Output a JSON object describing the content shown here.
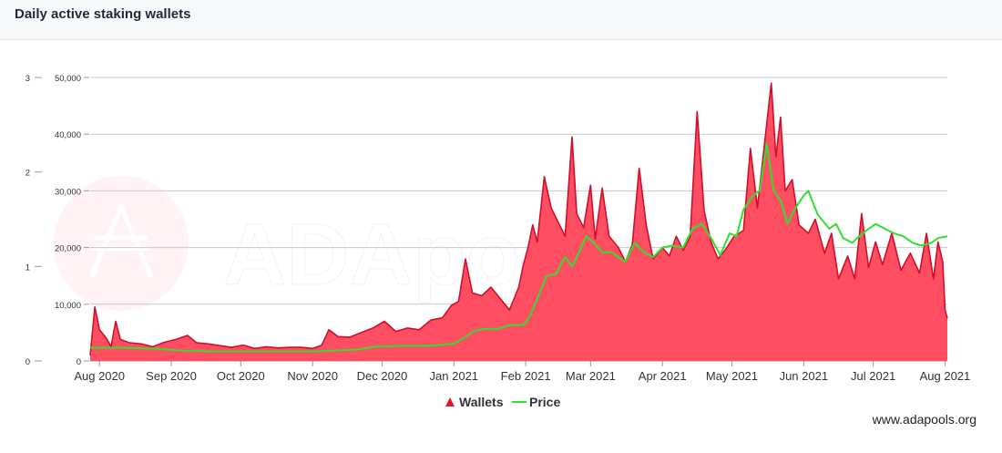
{
  "header": {
    "title": "Daily active staking wallets"
  },
  "footer": {
    "site": "www.adapools.org"
  },
  "watermark": {
    "text": "ADApools.org"
  },
  "colors": {
    "wallets_fill": "#ff4d62",
    "wallets_line": "#d10f2a",
    "price_line": "#2fe02f",
    "grid": "#c9c9c9",
    "axis_text": "#333333"
  },
  "chart_data": {
    "type": "area",
    "title": "Daily active staking wallets",
    "x_ticks": [
      "Aug 2020",
      "Sep 2020",
      "Oct 2020",
      "Nov 2020",
      "Dec 2020",
      "Jan 2021",
      "Feb 2021",
      "Mar 2021",
      "Apr 2021",
      "May 2021",
      "Jun 2021",
      "Jul 2021",
      "Aug 2021"
    ],
    "x_range": [
      "2020-07-28",
      "2021-08-02"
    ],
    "y_left": {
      "ticks": [
        "0",
        "1",
        "2",
        "3"
      ],
      "range": [
        0,
        3
      ]
    },
    "y_right": {
      "ticks": [
        "0",
        "10,000",
        "20,000",
        "30,000",
        "40,000",
        "50,000"
      ],
      "range": [
        0,
        50000
      ]
    },
    "grid": true,
    "legend": {
      "placement": "bottom-center"
    },
    "series": [
      {
        "name": "Wallets",
        "kind": "area",
        "axis": "right",
        "points": [
          [
            "2020-07-28",
            1000
          ],
          [
            "2020-07-30",
            9500
          ],
          [
            "2020-08-01",
            5500
          ],
          [
            "2020-08-04",
            4000
          ],
          [
            "2020-08-06",
            2500
          ],
          [
            "2020-08-08",
            7000
          ],
          [
            "2020-08-10",
            3800
          ],
          [
            "2020-08-14",
            3200
          ],
          [
            "2020-08-19",
            3000
          ],
          [
            "2020-08-24",
            2500
          ],
          [
            "2020-08-29",
            3300
          ],
          [
            "2020-09-03",
            3800
          ],
          [
            "2020-09-08",
            4500
          ],
          [
            "2020-09-12",
            3200
          ],
          [
            "2020-09-17",
            3000
          ],
          [
            "2020-09-22",
            2700
          ],
          [
            "2020-09-27",
            2400
          ],
          [
            "2020-10-02",
            2800
          ],
          [
            "2020-10-07",
            2200
          ],
          [
            "2020-10-12",
            2500
          ],
          [
            "2020-10-17",
            2300
          ],
          [
            "2020-10-22",
            2400
          ],
          [
            "2020-10-27",
            2400
          ],
          [
            "2020-11-01",
            2200
          ],
          [
            "2020-11-05",
            2800
          ],
          [
            "2020-11-08",
            5500
          ],
          [
            "2020-11-12",
            4300
          ],
          [
            "2020-11-17",
            4200
          ],
          [
            "2020-11-22",
            5000
          ],
          [
            "2020-11-27",
            5800
          ],
          [
            "2020-12-02",
            7000
          ],
          [
            "2020-12-07",
            5200
          ],
          [
            "2020-12-12",
            5800
          ],
          [
            "2020-12-17",
            5500
          ],
          [
            "2020-12-22",
            7200
          ],
          [
            "2020-12-27",
            7600
          ],
          [
            "2020-12-31",
            9800
          ],
          [
            "2021-01-03",
            10500
          ],
          [
            "2021-01-06",
            18000
          ],
          [
            "2021-01-09",
            12000
          ],
          [
            "2021-01-13",
            11500
          ],
          [
            "2021-01-17",
            13000
          ],
          [
            "2021-01-21",
            11000
          ],
          [
            "2021-01-25",
            9000
          ],
          [
            "2021-01-29",
            13000
          ],
          [
            "2021-01-31",
            17000
          ],
          [
            "2021-02-02",
            20000
          ],
          [
            "2021-02-04",
            24000
          ],
          [
            "2021-02-06",
            21000
          ],
          [
            "2021-02-09",
            32500
          ],
          [
            "2021-02-12",
            27000
          ],
          [
            "2021-02-15",
            24500
          ],
          [
            "2021-02-18",
            22000
          ],
          [
            "2021-02-21",
            39500
          ],
          [
            "2021-02-23",
            26000
          ],
          [
            "2021-02-26",
            23500
          ],
          [
            "2021-03-01",
            31000
          ],
          [
            "2021-03-03",
            21500
          ],
          [
            "2021-03-06",
            30500
          ],
          [
            "2021-03-09",
            22000
          ],
          [
            "2021-03-13",
            20000
          ],
          [
            "2021-03-16",
            17500
          ],
          [
            "2021-03-19",
            20500
          ],
          [
            "2021-03-22",
            34000
          ],
          [
            "2021-03-25",
            24000
          ],
          [
            "2021-03-28",
            18000
          ],
          [
            "2021-04-01",
            20000
          ],
          [
            "2021-04-04",
            18500
          ],
          [
            "2021-04-07",
            22000
          ],
          [
            "2021-04-10",
            19500
          ],
          [
            "2021-04-13",
            22000
          ],
          [
            "2021-04-16",
            44000
          ],
          [
            "2021-04-19",
            26500
          ],
          [
            "2021-04-22",
            21000
          ],
          [
            "2021-04-25",
            18000
          ],
          [
            "2021-04-28",
            19500
          ],
          [
            "2021-05-02",
            22000
          ],
          [
            "2021-05-06",
            23000
          ],
          [
            "2021-05-09",
            37500
          ],
          [
            "2021-05-12",
            27000
          ],
          [
            "2021-05-15",
            38000
          ],
          [
            "2021-05-18",
            49000
          ],
          [
            "2021-05-20",
            36000
          ],
          [
            "2021-05-22",
            43000
          ],
          [
            "2021-05-24",
            30000
          ],
          [
            "2021-05-27",
            32000
          ],
          [
            "2021-05-30",
            24000
          ],
          [
            "2021-06-03",
            22500
          ],
          [
            "2021-06-06",
            25000
          ],
          [
            "2021-06-10",
            19000
          ],
          [
            "2021-06-13",
            22500
          ],
          [
            "2021-06-16",
            14500
          ],
          [
            "2021-06-20",
            18500
          ],
          [
            "2021-06-23",
            14500
          ],
          [
            "2021-06-26",
            26000
          ],
          [
            "2021-06-29",
            16500
          ],
          [
            "2021-07-02",
            21000
          ],
          [
            "2021-07-05",
            17000
          ],
          [
            "2021-07-09",
            22500
          ],
          [
            "2021-07-13",
            16000
          ],
          [
            "2021-07-17",
            19000
          ],
          [
            "2021-07-21",
            15500
          ],
          [
            "2021-07-24",
            22500
          ],
          [
            "2021-07-27",
            14500
          ],
          [
            "2021-07-29",
            21000
          ],
          [
            "2021-07-31",
            17500
          ],
          [
            "2021-08-01",
            9000
          ],
          [
            "2021-08-02",
            7500
          ]
        ]
      },
      {
        "name": "Price",
        "kind": "line",
        "axis": "left",
        "points": [
          [
            "2020-07-28",
            0.14
          ],
          [
            "2020-08-10",
            0.14
          ],
          [
            "2020-08-25",
            0.13
          ],
          [
            "2020-09-05",
            0.11
          ],
          [
            "2020-09-20",
            0.1
          ],
          [
            "2020-10-05",
            0.1
          ],
          [
            "2020-10-20",
            0.1
          ],
          [
            "2020-11-01",
            0.1
          ],
          [
            "2020-11-10",
            0.11
          ],
          [
            "2020-11-20",
            0.12
          ],
          [
            "2020-11-28",
            0.15
          ],
          [
            "2020-12-10",
            0.16
          ],
          [
            "2020-12-20",
            0.16
          ],
          [
            "2021-01-01",
            0.18
          ],
          [
            "2021-01-05",
            0.24
          ],
          [
            "2021-01-10",
            0.32
          ],
          [
            "2021-01-15",
            0.34
          ],
          [
            "2021-01-20",
            0.34
          ],
          [
            "2021-01-25",
            0.38
          ],
          [
            "2021-01-31",
            0.38
          ],
          [
            "2021-02-03",
            0.48
          ],
          [
            "2021-02-06",
            0.66
          ],
          [
            "2021-02-10",
            0.9
          ],
          [
            "2021-02-14",
            0.92
          ],
          [
            "2021-02-18",
            1.1
          ],
          [
            "2021-02-21",
            1.0
          ],
          [
            "2021-02-25",
            1.2
          ],
          [
            "2021-02-27",
            1.32
          ],
          [
            "2021-03-02",
            1.26
          ],
          [
            "2021-03-06",
            1.15
          ],
          [
            "2021-03-10",
            1.15
          ],
          [
            "2021-03-13",
            1.1
          ],
          [
            "2021-03-16",
            1.05
          ],
          [
            "2021-03-20",
            1.25
          ],
          [
            "2021-03-24",
            1.15
          ],
          [
            "2021-03-28",
            1.1
          ],
          [
            "2021-04-01",
            1.2
          ],
          [
            "2021-04-05",
            1.22
          ],
          [
            "2021-04-10",
            1.2
          ],
          [
            "2021-04-14",
            1.4
          ],
          [
            "2021-04-18",
            1.45
          ],
          [
            "2021-04-22",
            1.3
          ],
          [
            "2021-04-26",
            1.12
          ],
          [
            "2021-04-30",
            1.35
          ],
          [
            "2021-05-03",
            1.32
          ],
          [
            "2021-05-06",
            1.6
          ],
          [
            "2021-05-10",
            1.75
          ],
          [
            "2021-05-13",
            1.8
          ],
          [
            "2021-05-16",
            2.3
          ],
          [
            "2021-05-19",
            1.8
          ],
          [
            "2021-05-22",
            1.7
          ],
          [
            "2021-05-25",
            1.45
          ],
          [
            "2021-05-28",
            1.6
          ],
          [
            "2021-06-01",
            1.75
          ],
          [
            "2021-06-03",
            1.8
          ],
          [
            "2021-06-07",
            1.55
          ],
          [
            "2021-06-12",
            1.4
          ],
          [
            "2021-06-15",
            1.45
          ],
          [
            "2021-06-18",
            1.3
          ],
          [
            "2021-06-22",
            1.25
          ],
          [
            "2021-06-25",
            1.32
          ],
          [
            "2021-06-28",
            1.38
          ],
          [
            "2021-07-02",
            1.45
          ],
          [
            "2021-07-06",
            1.4
          ],
          [
            "2021-07-10",
            1.35
          ],
          [
            "2021-07-14",
            1.32
          ],
          [
            "2021-07-18",
            1.25
          ],
          [
            "2021-07-22",
            1.22
          ],
          [
            "2021-07-26",
            1.25
          ],
          [
            "2021-07-29",
            1.3
          ],
          [
            "2021-08-02",
            1.32
          ]
        ]
      }
    ]
  }
}
